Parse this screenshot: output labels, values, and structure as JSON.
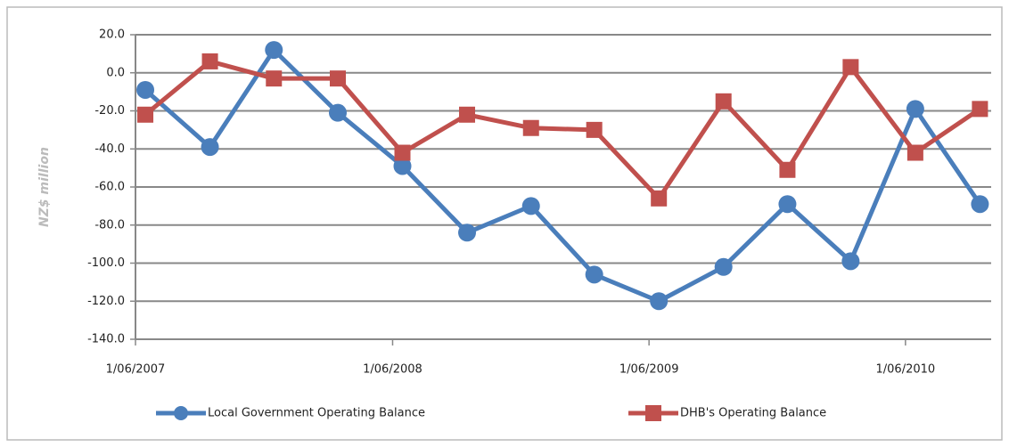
{
  "chart_data": {
    "type": "line",
    "y_label": "NZ$ million",
    "x": [
      "2007-06-15",
      "2007-09-15",
      "2007-12-15",
      "2008-03-15",
      "2008-06-15",
      "2008-09-15",
      "2008-12-15",
      "2009-03-15",
      "2009-06-15",
      "2009-09-15",
      "2009-12-15",
      "2010-03-15",
      "2010-06-15",
      "2010-09-15"
    ],
    "series": [
      {
        "name": "Local Government Operating Balance",
        "color": "#4a7ebb",
        "marker": "circle",
        "values": [
          -9,
          -39,
          12,
          -21,
          -49,
          -84,
          -70,
          -106,
          -120,
          -102,
          -69,
          -99,
          -19,
          -69
        ]
      },
      {
        "name": "DHB's Operating Balance",
        "color": "#c0504d",
        "marker": "square",
        "values": [
          -22,
          6,
          -3,
          -3,
          -42,
          -22,
          -29,
          -30,
          -66,
          -15,
          -51,
          3,
          -42,
          -19
        ]
      }
    ],
    "xlim": [
      "2007-06-01",
      "2010-10-01"
    ],
    "xticks": [
      {
        "value": "2007-06-01",
        "label": "1/06/2007"
      },
      {
        "value": "2008-06-01",
        "label": "1/06/2008"
      },
      {
        "value": "2009-06-01",
        "label": "1/06/2009"
      },
      {
        "value": "2010-06-01",
        "label": "1/06/2010"
      }
    ],
    "ylim": [
      -140,
      20
    ],
    "yticks": [
      {
        "value": -140,
        "label": "-140.0"
      },
      {
        "value": -120,
        "label": "-120.0"
      },
      {
        "value": -100,
        "label": "-100.0"
      },
      {
        "value": -80,
        "label": "-80.0"
      },
      {
        "value": -60,
        "label": "-60.0"
      },
      {
        "value": -40,
        "label": "-40.0"
      },
      {
        "value": -20,
        "label": "-20.0"
      },
      {
        "value": 0,
        "label": "0.0"
      },
      {
        "value": 20,
        "label": "20.0"
      }
    ],
    "grid": true,
    "legend": "bottom"
  }
}
